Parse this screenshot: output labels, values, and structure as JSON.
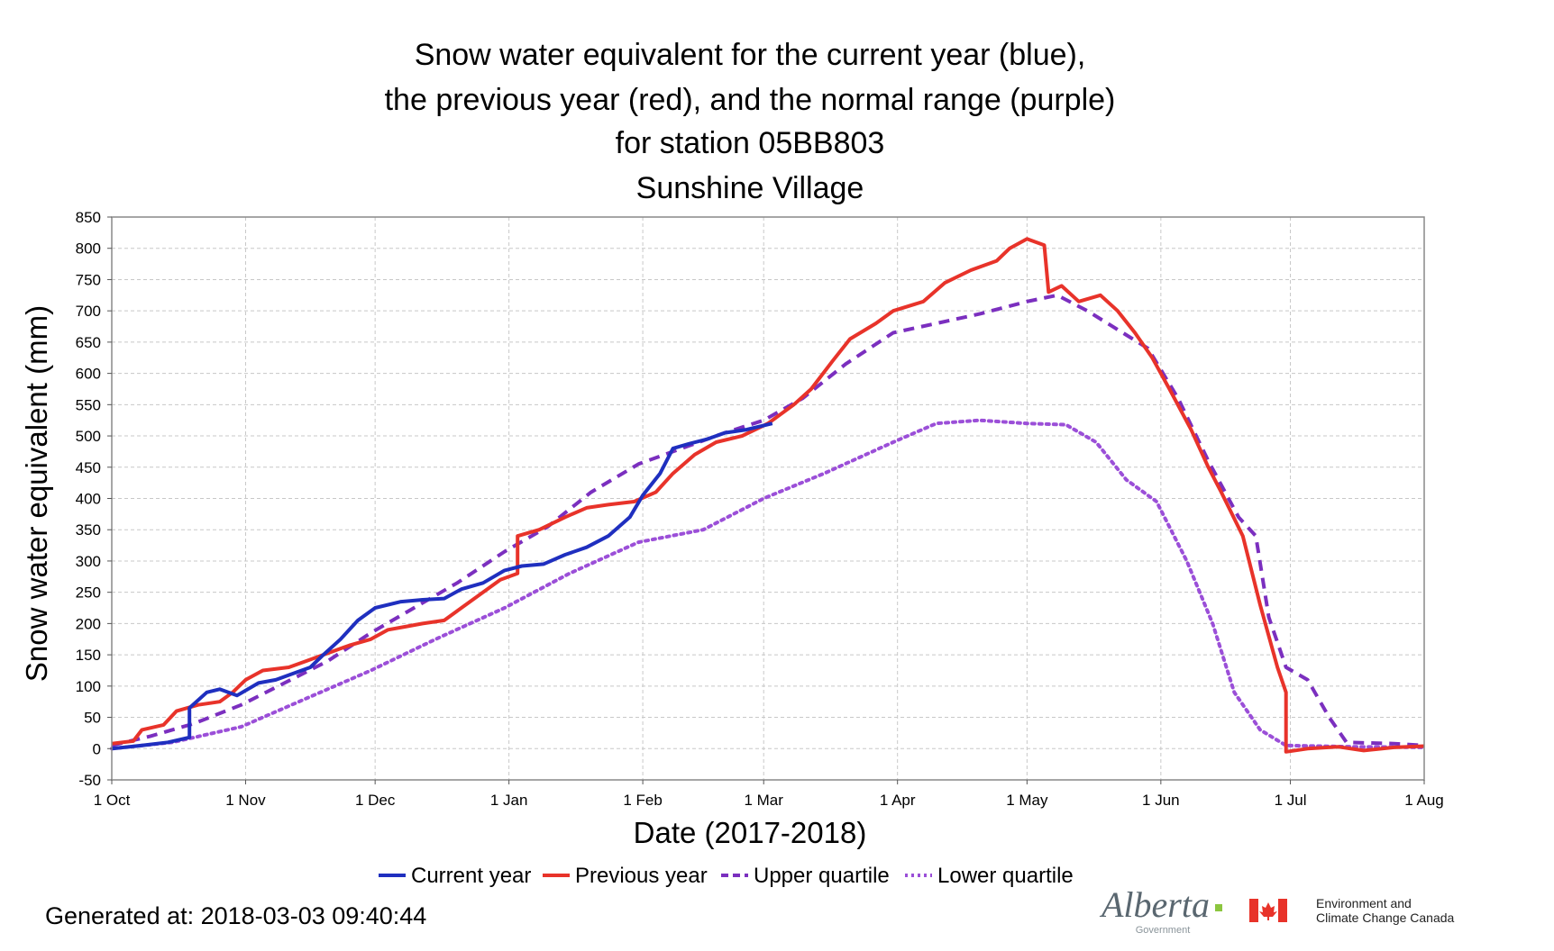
{
  "chart_data": {
    "type": "line",
    "title_lines": [
      "Snow water equivalent for the current year (blue),",
      "the previous year (red), and the normal range (purple)",
      "for station 05BB803",
      "Sunshine Village"
    ],
    "xlabel": "Date (2017-2018)",
    "ylabel": "Snow water equivalent (mm)",
    "x_axis_type": "date",
    "xlim": [
      "2017-10-01",
      "2018-08-01"
    ],
    "ylim": [
      -50,
      850
    ],
    "y_ticks": [
      -50,
      0,
      50,
      100,
      150,
      200,
      250,
      300,
      350,
      400,
      450,
      500,
      550,
      600,
      650,
      700,
      750,
      800,
      850
    ],
    "x_ticks": [
      {
        "date": "2017-10-01",
        "label": "1 Oct"
      },
      {
        "date": "2017-11-01",
        "label": "1 Nov"
      },
      {
        "date": "2017-12-01",
        "label": "1 Dec"
      },
      {
        "date": "2018-01-01",
        "label": "1 Jan"
      },
      {
        "date": "2018-02-01",
        "label": "1 Feb"
      },
      {
        "date": "2018-03-01",
        "label": "1 Mar"
      },
      {
        "date": "2018-04-01",
        "label": "1 Apr"
      },
      {
        "date": "2018-05-01",
        "label": "1 May"
      },
      {
        "date": "2018-06-01",
        "label": "1 Jun"
      },
      {
        "date": "2018-07-01",
        "label": "1 Jul"
      },
      {
        "date": "2018-08-01",
        "label": "1 Aug"
      }
    ],
    "grid": true,
    "legend_position": "bottom-center",
    "series": [
      {
        "name": "Current year",
        "color": "#1f2fbf",
        "style": "solid",
        "points": [
          [
            "2017-10-01",
            0
          ],
          [
            "2017-10-08",
            5
          ],
          [
            "2017-10-14",
            10
          ],
          [
            "2017-10-19",
            18
          ],
          [
            "2017-10-19",
            65
          ],
          [
            "2017-10-23",
            90
          ],
          [
            "2017-10-26",
            95
          ],
          [
            "2017-10-30",
            85
          ],
          [
            "2017-11-04",
            105
          ],
          [
            "2017-11-08",
            110
          ],
          [
            "2017-11-12",
            120
          ],
          [
            "2017-11-16",
            130
          ],
          [
            "2017-11-19",
            150
          ],
          [
            "2017-11-23",
            175
          ],
          [
            "2017-11-27",
            205
          ],
          [
            "2017-12-01",
            225
          ],
          [
            "2017-12-07",
            235
          ],
          [
            "2017-12-12",
            238
          ],
          [
            "2017-12-17",
            240
          ],
          [
            "2017-12-21",
            255
          ],
          [
            "2017-12-26",
            265
          ],
          [
            "2017-12-31",
            285
          ],
          [
            "2018-01-04",
            292
          ],
          [
            "2018-01-09",
            295
          ],
          [
            "2018-01-14",
            310
          ],
          [
            "2018-01-19",
            322
          ],
          [
            "2018-01-24",
            340
          ],
          [
            "2018-01-29",
            370
          ],
          [
            "2018-02-01",
            405
          ],
          [
            "2018-02-05",
            440
          ],
          [
            "2018-02-08",
            480
          ],
          [
            "2018-02-12",
            488
          ],
          [
            "2018-02-16",
            495
          ],
          [
            "2018-02-20",
            505
          ],
          [
            "2018-02-25",
            510
          ],
          [
            "2018-03-03",
            520
          ]
        ]
      },
      {
        "name": "Previous year",
        "color": "#e8332a",
        "style": "solid",
        "points": [
          [
            "2017-10-01",
            8
          ],
          [
            "2017-10-06",
            12
          ],
          [
            "2017-10-08",
            30
          ],
          [
            "2017-10-13",
            38
          ],
          [
            "2017-10-16",
            60
          ],
          [
            "2017-10-21",
            70
          ],
          [
            "2017-10-26",
            75
          ],
          [
            "2017-10-29",
            90
          ],
          [
            "2017-11-01",
            110
          ],
          [
            "2017-11-05",
            125
          ],
          [
            "2017-11-11",
            130
          ],
          [
            "2017-11-15",
            140
          ],
          [
            "2017-11-19",
            150
          ],
          [
            "2017-11-25",
            165
          ],
          [
            "2017-11-30",
            175
          ],
          [
            "2017-12-04",
            190
          ],
          [
            "2017-12-08",
            195
          ],
          [
            "2017-12-12",
            200
          ],
          [
            "2017-12-17",
            205
          ],
          [
            "2017-12-21",
            225
          ],
          [
            "2017-12-25",
            245
          ],
          [
            "2017-12-30",
            270
          ],
          [
            "2018-01-03",
            280
          ],
          [
            "2018-01-03",
            340
          ],
          [
            "2018-01-08",
            350
          ],
          [
            "2018-01-14",
            370
          ],
          [
            "2018-01-19",
            385
          ],
          [
            "2018-01-24",
            390
          ],
          [
            "2018-01-30",
            395
          ],
          [
            "2018-02-04",
            410
          ],
          [
            "2018-02-08",
            440
          ],
          [
            "2018-02-13",
            470
          ],
          [
            "2018-02-18",
            490
          ],
          [
            "2018-02-24",
            500
          ],
          [
            "2018-03-02",
            520
          ],
          [
            "2018-03-08",
            550
          ],
          [
            "2018-03-12",
            575
          ],
          [
            "2018-03-17",
            620
          ],
          [
            "2018-03-21",
            655
          ],
          [
            "2018-03-27",
            680
          ],
          [
            "2018-03-31",
            700
          ],
          [
            "2018-04-07",
            715
          ],
          [
            "2018-04-12",
            745
          ],
          [
            "2018-04-18",
            765
          ],
          [
            "2018-04-24",
            780
          ],
          [
            "2018-04-27",
            800
          ],
          [
            "2018-05-01",
            815
          ],
          [
            "2018-05-05",
            805
          ],
          [
            "2018-05-06",
            730
          ],
          [
            "2018-05-09",
            740
          ],
          [
            "2018-05-13",
            715
          ],
          [
            "2018-05-18",
            725
          ],
          [
            "2018-05-22",
            700
          ],
          [
            "2018-05-26",
            665
          ],
          [
            "2018-05-30",
            625
          ],
          [
            "2018-06-03",
            575
          ],
          [
            "2018-06-08",
            510
          ],
          [
            "2018-06-12",
            450
          ],
          [
            "2018-06-15",
            410
          ],
          [
            "2018-06-20",
            340
          ],
          [
            "2018-06-24",
            230
          ],
          [
            "2018-06-28",
            130
          ],
          [
            "2018-06-30",
            90
          ],
          [
            "2018-06-30",
            -5
          ],
          [
            "2018-07-05",
            0
          ],
          [
            "2018-07-12",
            3
          ],
          [
            "2018-07-18",
            -3
          ],
          [
            "2018-07-25",
            2
          ],
          [
            "2018-08-01",
            4
          ]
        ]
      },
      {
        "name": "Upper quartile",
        "color": "#7b2fbf",
        "style": "dashed",
        "points": [
          [
            "2017-10-01",
            5
          ],
          [
            "2017-10-10",
            20
          ],
          [
            "2017-10-20",
            40
          ],
          [
            "2017-10-31",
            70
          ],
          [
            "2017-11-10",
            105
          ],
          [
            "2017-11-20",
            140
          ],
          [
            "2017-11-30",
            185
          ],
          [
            "2017-12-10",
            225
          ],
          [
            "2017-12-20",
            265
          ],
          [
            "2017-12-31",
            315
          ],
          [
            "2018-01-10",
            355
          ],
          [
            "2018-01-20",
            410
          ],
          [
            "2018-01-31",
            455
          ],
          [
            "2018-02-10",
            480
          ],
          [
            "2018-02-20",
            505
          ],
          [
            "2018-03-01",
            525
          ],
          [
            "2018-03-10",
            560
          ],
          [
            "2018-03-20",
            615
          ],
          [
            "2018-03-31",
            665
          ],
          [
            "2018-04-10",
            680
          ],
          [
            "2018-04-20",
            695
          ],
          [
            "2018-05-01",
            715
          ],
          [
            "2018-05-08",
            725
          ],
          [
            "2018-05-15",
            700
          ],
          [
            "2018-05-22",
            670
          ],
          [
            "2018-05-29",
            640
          ],
          [
            "2018-06-05",
            560
          ],
          [
            "2018-06-12",
            460
          ],
          [
            "2018-06-19",
            370
          ],
          [
            "2018-06-23",
            340
          ],
          [
            "2018-06-26",
            210
          ],
          [
            "2018-06-30",
            130
          ],
          [
            "2018-07-05",
            110
          ],
          [
            "2018-07-10",
            50
          ],
          [
            "2018-07-14",
            10
          ],
          [
            "2018-07-25",
            8
          ],
          [
            "2018-08-01",
            5
          ]
        ]
      },
      {
        "name": "Lower quartile",
        "color": "#9b4fd8",
        "style": "dotted",
        "points": [
          [
            "2017-10-01",
            0
          ],
          [
            "2017-10-15",
            10
          ],
          [
            "2017-10-31",
            35
          ],
          [
            "2017-11-15",
            80
          ],
          [
            "2017-11-30",
            125
          ],
          [
            "2017-12-15",
            175
          ],
          [
            "2017-12-31",
            225
          ],
          [
            "2018-01-15",
            280
          ],
          [
            "2018-01-31",
            330
          ],
          [
            "2018-02-15",
            350
          ],
          [
            "2018-03-01",
            400
          ],
          [
            "2018-03-15",
            440
          ],
          [
            "2018-03-31",
            490
          ],
          [
            "2018-04-10",
            520
          ],
          [
            "2018-04-20",
            525
          ],
          [
            "2018-05-01",
            520
          ],
          [
            "2018-05-10",
            518
          ],
          [
            "2018-05-17",
            490
          ],
          [
            "2018-05-24",
            430
          ],
          [
            "2018-05-31",
            395
          ],
          [
            "2018-06-07",
            300
          ],
          [
            "2018-06-13",
            200
          ],
          [
            "2018-06-18",
            90
          ],
          [
            "2018-06-24",
            30
          ],
          [
            "2018-06-30",
            5
          ],
          [
            "2018-07-15",
            3
          ],
          [
            "2018-08-01",
            2
          ]
        ]
      }
    ]
  },
  "footer": {
    "generated": "Generated at: 2018-03-03 09:40:44",
    "alberta_logo_text": "Alberta",
    "alberta_logo_sub": "Government",
    "eccc_line1": "Environment and",
    "eccc_line2": "Climate Change Canada"
  },
  "colors": {
    "grid": "#c8c8c8",
    "canada_flag_red": "#e8332a",
    "alberta_accent": "#8cc63f"
  }
}
